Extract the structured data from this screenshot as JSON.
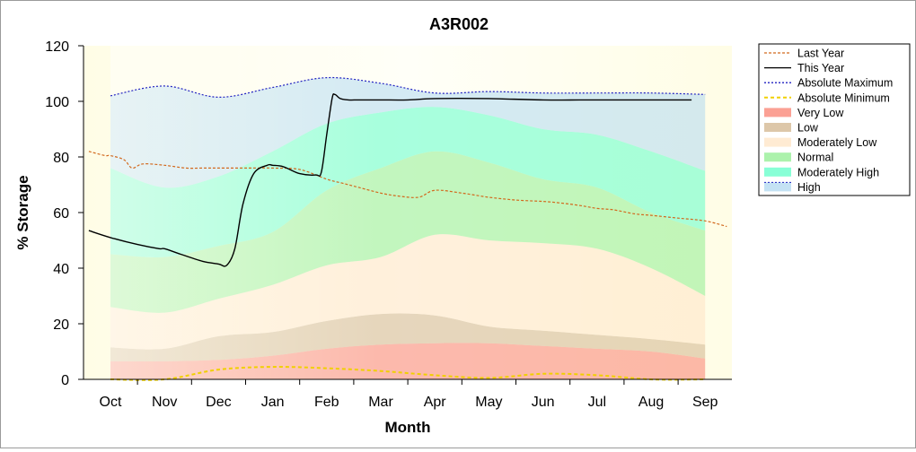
{
  "chart_data": {
    "type": "area",
    "title": "A3R002",
    "xlabel": "Month",
    "ylabel": "% Storage",
    "categories": [
      "Oct",
      "Nov",
      "Dec",
      "Jan",
      "Feb",
      "Mar",
      "Apr",
      "May",
      "Jun",
      "Jul",
      "Aug",
      "Sep"
    ],
    "yticks": [
      0,
      20,
      40,
      60,
      80,
      100,
      120
    ],
    "ylim": [
      0,
      120
    ],
    "grid": false,
    "legend_placement": "right",
    "bands": [
      {
        "name": "Very Low",
        "color": "#fa8070",
        "lower": [
          0,
          0,
          0,
          0,
          0,
          0,
          0,
          0,
          0,
          0,
          0,
          0
        ],
        "upper": [
          6.5,
          6.5,
          7,
          8.5,
          11,
          12.5,
          13,
          13,
          12,
          11,
          10,
          7.5
        ]
      },
      {
        "name": "Low",
        "color": "#d2b48c",
        "lower": [
          6.5,
          6.5,
          7,
          8.5,
          11,
          12.5,
          13,
          13,
          12,
          11,
          10,
          7.5
        ],
        "upper": [
          11.5,
          11,
          15.5,
          17,
          21,
          23.5,
          23,
          19,
          17.5,
          16,
          14.5,
          12.5
        ]
      },
      {
        "name": "Moderately Low",
        "color": "#ffe4c4",
        "lower": [
          11.5,
          11,
          15.5,
          17,
          21,
          23.5,
          23,
          19,
          17.5,
          16,
          14.5,
          12.5
        ],
        "upper": [
          26,
          24,
          29,
          34,
          41,
          44,
          52,
          50,
          49,
          47,
          40,
          30
        ]
      },
      {
        "name": "Normal",
        "color": "#90ee90",
        "lower": [
          26,
          24,
          29,
          34,
          41,
          44,
          52,
          50,
          49,
          47,
          40,
          30
        ],
        "upper": [
          45,
          44,
          48,
          53,
          68,
          76,
          82,
          78,
          72,
          69,
          60,
          53.5
        ]
      },
      {
        "name": "Moderately High",
        "color": "#60ffc8",
        "lower": [
          45,
          44,
          48,
          53,
          68,
          76,
          82,
          78,
          72,
          69,
          60,
          53.5
        ],
        "upper": [
          76,
          69,
          73,
          82,
          92,
          96,
          98,
          95,
          90,
          88,
          82,
          75
        ]
      },
      {
        "name": "High",
        "color": "#b0d8f0",
        "lower": [
          76,
          69,
          73,
          82,
          92,
          96,
          98,
          95,
          90,
          88,
          82,
          75
        ],
        "upper": [
          102,
          105.5,
          101.5,
          105,
          108.5,
          106.5,
          103,
          103.5,
          103,
          103,
          103,
          102.5
        ]
      }
    ],
    "series": [
      {
        "name": "Last Year",
        "color": "#d2691e",
        "dash": "3,2",
        "x": [
          -0.4,
          -0.1,
          0.0,
          0.25,
          0.4,
          0.6,
          1.0,
          1.4,
          1.7,
          2.0,
          2.5,
          3.0,
          3.5,
          4.0,
          4.3,
          4.6,
          5.0,
          5.3,
          5.7,
          6.0,
          6.5,
          7.0,
          7.5,
          8.0,
          8.3,
          8.7,
          9.0,
          9.3,
          9.7,
          10.0,
          10.5,
          11.0,
          11.4
        ],
        "y": [
          82,
          80.5,
          80.5,
          79,
          76,
          77.5,
          77,
          76,
          76,
          76,
          76,
          76,
          75.5,
          72,
          70.5,
          69,
          67,
          66,
          65.5,
          68,
          67,
          65.5,
          64.5,
          64,
          63.5,
          62.5,
          61.5,
          61,
          59.5,
          59,
          58,
          57,
          55
        ]
      },
      {
        "name": "This Year",
        "color": "#000000",
        "dash": "",
        "x": [
          -0.4,
          0.0,
          0.5,
          0.9,
          1.0,
          1.3,
          1.7,
          2.0,
          2.15,
          2.3,
          2.45,
          2.65,
          2.9,
          3.0,
          3.2,
          3.5,
          3.8,
          3.9,
          4.0,
          4.1,
          4.15,
          4.25,
          4.4,
          4.6,
          5.0,
          5.5,
          6.0,
          7.0,
          8.0,
          9.0,
          10.0,
          10.75
        ],
        "y": [
          53.5,
          51,
          48.5,
          47,
          47,
          45,
          42.5,
          41.5,
          41,
          47,
          63,
          74,
          77,
          77,
          76.5,
          74,
          73.5,
          74.5,
          88,
          101,
          102.5,
          101,
          100.5,
          100.5,
          100.5,
          100.5,
          101,
          101,
          100.5,
          100.5,
          100.5,
          100.5
        ]
      },
      {
        "name": "Absolute Maximum",
        "color": "#2020c0",
        "dash": "2,2",
        "x": [
          0,
          1,
          2,
          3,
          4,
          5,
          6,
          7,
          8,
          9,
          10,
          11
        ],
        "y": [
          102,
          105.5,
          101.5,
          105,
          108.5,
          106.5,
          103,
          103.5,
          103,
          103,
          103,
          102.5
        ]
      },
      {
        "name": "Absolute Minimum",
        "color": "#f0d000",
        "dash": "4,3",
        "x": [
          0,
          1,
          2,
          3,
          4,
          5,
          6,
          7,
          8,
          9,
          10,
          11
        ],
        "y": [
          0,
          0,
          3.5,
          4.5,
          4,
          3,
          1.5,
          0.5,
          2,
          1.5,
          0,
          0
        ]
      }
    ],
    "legend": [
      "Last Year",
      "This Year",
      "Absolute Maximum",
      "Absolute Minimum",
      "Very Low",
      "Low",
      "Moderately Low",
      "Normal",
      "Moderately High",
      "High"
    ]
  }
}
